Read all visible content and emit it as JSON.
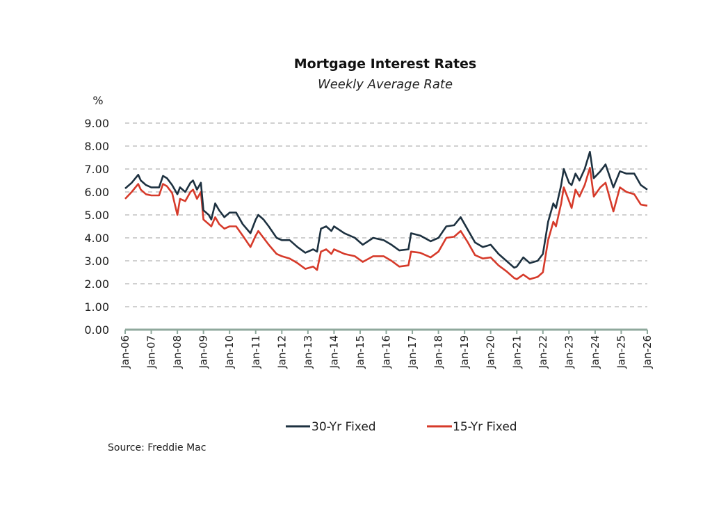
{
  "chart_data": {
    "type": "line",
    "title": "Mortgage Interest Rates",
    "subtitle": "Weekly Average Rate",
    "ylabel": "%",
    "xlabel": "",
    "ylim": [
      0,
      9
    ],
    "xlim": [
      2006,
      2026
    ],
    "grid": true,
    "y_ticks": [
      "0.00",
      "1.00",
      "2.00",
      "3.00",
      "4.00",
      "5.00",
      "6.00",
      "7.00",
      "8.00",
      "9.00"
    ],
    "x_ticks": [
      "Jan-06",
      "Jan-07",
      "Jan-08",
      "Jan-09",
      "Jan-10",
      "Jan-11",
      "Jan-12",
      "Jan-13",
      "Jan-14",
      "Jan-15",
      "Jan-16",
      "Jan-17",
      "Jan-18",
      "Jan-19",
      "Jan-20",
      "Jan-21",
      "Jan-22",
      "Jan-23",
      "Jan-24",
      "Jan-25",
      "Jan-26"
    ],
    "legend_position": "bottom",
    "source": "Source: Freddie Mac",
    "series": [
      {
        "name": "30-Yr Fixed",
        "color": "#1d3140",
        "points": [
          [
            2006.0,
            6.15
          ],
          [
            2006.25,
            6.4
          ],
          [
            2006.5,
            6.75
          ],
          [
            2006.6,
            6.5
          ],
          [
            2006.8,
            6.3
          ],
          [
            2007.0,
            6.2
          ],
          [
            2007.3,
            6.2
          ],
          [
            2007.45,
            6.7
          ],
          [
            2007.6,
            6.6
          ],
          [
            2007.8,
            6.3
          ],
          [
            2008.0,
            5.9
          ],
          [
            2008.1,
            6.2
          ],
          [
            2008.3,
            6.0
          ],
          [
            2008.5,
            6.4
          ],
          [
            2008.6,
            6.5
          ],
          [
            2008.75,
            6.1
          ],
          [
            2008.9,
            6.4
          ],
          [
            2009.0,
            5.2
          ],
          [
            2009.2,
            5.0
          ],
          [
            2009.3,
            4.8
          ],
          [
            2009.45,
            5.5
          ],
          [
            2009.6,
            5.2
          ],
          [
            2009.8,
            4.9
          ],
          [
            2010.0,
            5.1
          ],
          [
            2010.25,
            5.1
          ],
          [
            2010.5,
            4.6
          ],
          [
            2010.8,
            4.2
          ],
          [
            2011.0,
            4.8
          ],
          [
            2011.1,
            5.0
          ],
          [
            2011.3,
            4.8
          ],
          [
            2011.5,
            4.5
          ],
          [
            2011.8,
            4.0
          ],
          [
            2012.0,
            3.9
          ],
          [
            2012.3,
            3.9
          ],
          [
            2012.6,
            3.6
          ],
          [
            2012.9,
            3.35
          ],
          [
            2013.2,
            3.5
          ],
          [
            2013.35,
            3.4
          ],
          [
            2013.5,
            4.4
          ],
          [
            2013.7,
            4.5
          ],
          [
            2013.9,
            4.3
          ],
          [
            2014.0,
            4.5
          ],
          [
            2014.4,
            4.2
          ],
          [
            2014.8,
            4.0
          ],
          [
            2015.1,
            3.7
          ],
          [
            2015.5,
            4.0
          ],
          [
            2015.9,
            3.9
          ],
          [
            2016.2,
            3.7
          ],
          [
            2016.5,
            3.45
          ],
          [
            2016.85,
            3.5
          ],
          [
            2016.95,
            4.2
          ],
          [
            2017.3,
            4.1
          ],
          [
            2017.7,
            3.85
          ],
          [
            2018.0,
            4.0
          ],
          [
            2018.3,
            4.5
          ],
          [
            2018.6,
            4.55
          ],
          [
            2018.85,
            4.9
          ],
          [
            2019.1,
            4.4
          ],
          [
            2019.4,
            3.8
          ],
          [
            2019.7,
            3.6
          ],
          [
            2020.0,
            3.7
          ],
          [
            2020.3,
            3.3
          ],
          [
            2020.6,
            3.0
          ],
          [
            2020.9,
            2.7
          ],
          [
            2021.0,
            2.75
          ],
          [
            2021.25,
            3.15
          ],
          [
            2021.5,
            2.9
          ],
          [
            2021.8,
            3.0
          ],
          [
            2022.0,
            3.3
          ],
          [
            2022.2,
            4.7
          ],
          [
            2022.4,
            5.5
          ],
          [
            2022.5,
            5.3
          ],
          [
            2022.7,
            6.3
          ],
          [
            2022.8,
            7.0
          ],
          [
            2023.0,
            6.4
          ],
          [
            2023.1,
            6.3
          ],
          [
            2023.25,
            6.8
          ],
          [
            2023.4,
            6.5
          ],
          [
            2023.6,
            7.0
          ],
          [
            2023.8,
            7.75
          ],
          [
            2023.95,
            6.6
          ],
          [
            2024.2,
            6.9
          ],
          [
            2024.4,
            7.2
          ],
          [
            2024.7,
            6.2
          ],
          [
            2024.95,
            6.9
          ],
          [
            2025.2,
            6.8
          ],
          [
            2025.5,
            6.8
          ],
          [
            2025.75,
            6.3
          ],
          [
            2026.0,
            6.1
          ]
        ]
      },
      {
        "name": "15-Yr Fixed",
        "color": "#d63a2a",
        "points": [
          [
            2006.0,
            5.7
          ],
          [
            2006.25,
            6.0
          ],
          [
            2006.5,
            6.35
          ],
          [
            2006.6,
            6.1
          ],
          [
            2006.8,
            5.9
          ],
          [
            2007.0,
            5.85
          ],
          [
            2007.3,
            5.85
          ],
          [
            2007.45,
            6.35
          ],
          [
            2007.6,
            6.25
          ],
          [
            2007.8,
            5.95
          ],
          [
            2008.0,
            5.0
          ],
          [
            2008.1,
            5.7
          ],
          [
            2008.3,
            5.6
          ],
          [
            2008.5,
            6.0
          ],
          [
            2008.6,
            6.1
          ],
          [
            2008.75,
            5.7
          ],
          [
            2008.9,
            6.0
          ],
          [
            2009.0,
            4.8
          ],
          [
            2009.2,
            4.6
          ],
          [
            2009.3,
            4.5
          ],
          [
            2009.45,
            4.9
          ],
          [
            2009.6,
            4.6
          ],
          [
            2009.8,
            4.4
          ],
          [
            2010.0,
            4.5
          ],
          [
            2010.25,
            4.5
          ],
          [
            2010.5,
            4.1
          ],
          [
            2010.8,
            3.6
          ],
          [
            2011.0,
            4.1
          ],
          [
            2011.1,
            4.3
          ],
          [
            2011.3,
            4.0
          ],
          [
            2011.5,
            3.7
          ],
          [
            2011.8,
            3.3
          ],
          [
            2012.0,
            3.2
          ],
          [
            2012.3,
            3.1
          ],
          [
            2012.6,
            2.9
          ],
          [
            2012.9,
            2.65
          ],
          [
            2013.2,
            2.75
          ],
          [
            2013.35,
            2.6
          ],
          [
            2013.5,
            3.4
          ],
          [
            2013.7,
            3.5
          ],
          [
            2013.9,
            3.3
          ],
          [
            2014.0,
            3.5
          ],
          [
            2014.4,
            3.3
          ],
          [
            2014.8,
            3.2
          ],
          [
            2015.1,
            2.95
          ],
          [
            2015.5,
            3.2
          ],
          [
            2015.9,
            3.2
          ],
          [
            2016.2,
            3.0
          ],
          [
            2016.5,
            2.75
          ],
          [
            2016.85,
            2.8
          ],
          [
            2016.95,
            3.4
          ],
          [
            2017.3,
            3.35
          ],
          [
            2017.7,
            3.15
          ],
          [
            2018.0,
            3.4
          ],
          [
            2018.3,
            4.0
          ],
          [
            2018.6,
            4.05
          ],
          [
            2018.85,
            4.3
          ],
          [
            2019.1,
            3.85
          ],
          [
            2019.4,
            3.25
          ],
          [
            2019.7,
            3.1
          ],
          [
            2020.0,
            3.15
          ],
          [
            2020.3,
            2.8
          ],
          [
            2020.6,
            2.55
          ],
          [
            2020.9,
            2.25
          ],
          [
            2021.0,
            2.2
          ],
          [
            2021.25,
            2.4
          ],
          [
            2021.5,
            2.2
          ],
          [
            2021.8,
            2.3
          ],
          [
            2022.0,
            2.5
          ],
          [
            2022.2,
            3.9
          ],
          [
            2022.4,
            4.7
          ],
          [
            2022.5,
            4.5
          ],
          [
            2022.7,
            5.5
          ],
          [
            2022.8,
            6.2
          ],
          [
            2023.0,
            5.6
          ],
          [
            2023.1,
            5.3
          ],
          [
            2023.25,
            6.1
          ],
          [
            2023.4,
            5.8
          ],
          [
            2023.6,
            6.3
          ],
          [
            2023.8,
            7.05
          ],
          [
            2023.95,
            5.8
          ],
          [
            2024.2,
            6.2
          ],
          [
            2024.4,
            6.4
          ],
          [
            2024.7,
            5.15
          ],
          [
            2024.95,
            6.2
          ],
          [
            2025.2,
            6.0
          ],
          [
            2025.5,
            5.9
          ],
          [
            2025.75,
            5.45
          ],
          [
            2026.0,
            5.4
          ]
        ]
      }
    ]
  }
}
